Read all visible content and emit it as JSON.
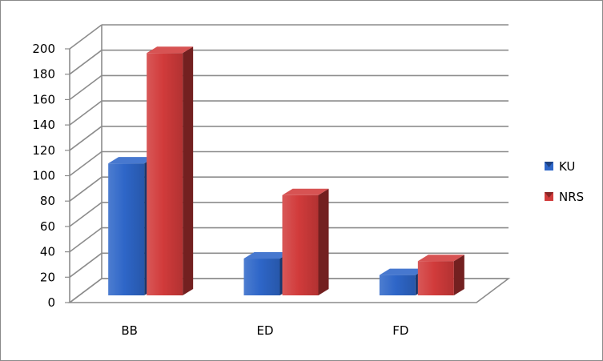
{
  "chart_data": {
    "type": "bar",
    "title": "",
    "xlabel": "",
    "ylabel": "",
    "categories": [
      "BB",
      "ED",
      "FD"
    ],
    "series": [
      {
        "name": "KU",
        "values": [
          104,
          29,
          16
        ],
        "color": "#2e66c8"
      },
      {
        "name": "NRS",
        "values": [
          191,
          79,
          27
        ],
        "color": "#d13b3b"
      }
    ],
    "ylim": [
      0,
      200
    ],
    "yticks": [
      "0",
      "20",
      "40",
      "60",
      "80",
      "100",
      "120",
      "140",
      "160",
      "180",
      "200"
    ],
    "grid": true,
    "legend": "right"
  }
}
